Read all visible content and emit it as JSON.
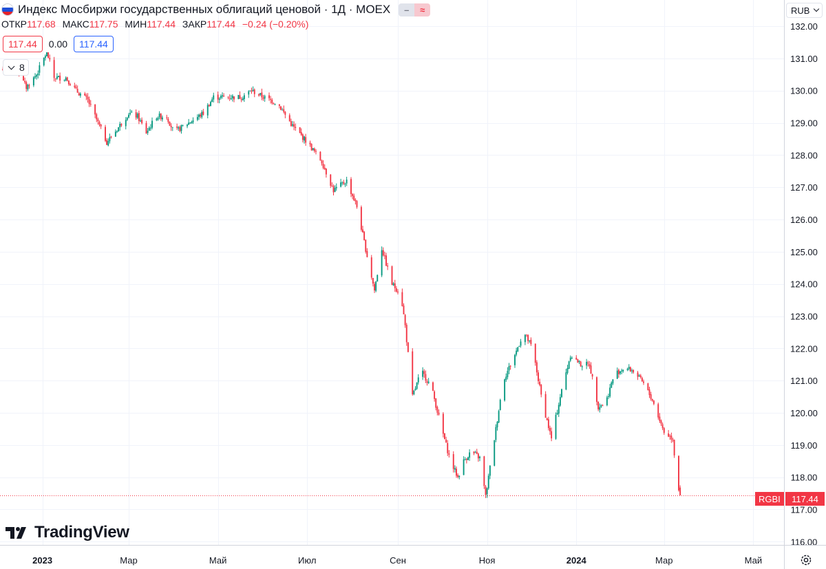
{
  "header": {
    "title": "Индекс Мосбиржи государственных облигаций ценовой · 1Д · MOEX",
    "flag_colors": [
      "#ffffff",
      "#1e4fd8",
      "#e4232b"
    ],
    "toggle_minus": "–",
    "toggle_wave": "≈"
  },
  "ohlc": {
    "open_label": "ОТКР",
    "open": "117.68",
    "high_label": "МАКС",
    "high": "117.75",
    "low_label": "МИН",
    "low": "117.44",
    "close_label": "ЗАКР",
    "close": "117.44",
    "change": "−0.24 (−0.20%)"
  },
  "boxes": {
    "sell": "117.44",
    "spread": "0.00",
    "buy": "117.44"
  },
  "collapse_count": "8",
  "currency": "RUB",
  "ticker_tag": "RGBI",
  "price_tag": "117.44",
  "logo_text": "TradingView",
  "colors": {
    "up": "#089981",
    "down": "#f23645",
    "grid": "#f0f3fa",
    "axis_text": "#131722"
  },
  "chart_data": {
    "type": "candlestick",
    "interval": "1D",
    "last_price": 117.44,
    "ylim": [
      115.9,
      132.15
    ],
    "y_ticks": [
      116,
      117,
      118,
      119,
      120,
      121,
      122,
      123,
      124,
      125,
      126,
      127,
      128,
      129,
      130,
      131,
      132
    ],
    "x_tick_labels": [
      "2023",
      "Мар",
      "Май",
      "Июл",
      "Сен",
      "Ноя",
      "2024",
      "Мар",
      "Май"
    ],
    "x_tick_dates": [
      "2023-01-01",
      "2023-03-01",
      "2023-05-01",
      "2023-07-01",
      "2023-09-01",
      "2023-11-01",
      "2024-01-01",
      "2024-03-01",
      "2024-05-01"
    ],
    "x_range": [
      "2022-12-03",
      "2024-05-22"
    ],
    "close_path": [
      [
        "2022-12-03",
        130.6
      ],
      [
        "2022-12-13",
        130.75
      ],
      [
        "2022-12-21",
        130.1
      ],
      [
        "2022-12-28",
        130.5
      ],
      [
        "2023-01-04",
        131.2
      ],
      [
        "2023-01-09",
        130.4
      ],
      [
        "2023-01-17",
        130.4
      ],
      [
        "2023-01-24",
        130.0
      ],
      [
        "2023-02-01",
        129.7
      ],
      [
        "2023-02-08",
        129.0
      ],
      [
        "2023-02-14",
        128.4
      ],
      [
        "2023-02-21",
        128.8
      ],
      [
        "2023-03-01",
        129.3
      ],
      [
        "2023-03-07",
        129.2
      ],
      [
        "2023-03-13",
        128.7
      ],
      [
        "2023-03-20",
        129.2
      ],
      [
        "2023-03-27",
        129.2
      ],
      [
        "2023-04-01",
        128.7
      ],
      [
        "2023-04-11",
        129.0
      ],
      [
        "2023-04-21",
        129.3
      ],
      [
        "2023-04-28",
        129.8
      ],
      [
        "2023-05-08",
        129.8
      ],
      [
        "2023-05-17",
        129.8
      ],
      [
        "2023-05-24",
        130.0
      ],
      [
        "2023-06-01",
        129.8
      ],
      [
        "2023-06-11",
        129.6
      ],
      [
        "2023-06-21",
        128.9
      ],
      [
        "2023-07-01",
        128.4
      ],
      [
        "2023-07-11",
        127.8
      ],
      [
        "2023-07-19",
        126.9
      ],
      [
        "2023-07-28",
        127.2
      ],
      [
        "2023-08-04",
        126.4
      ],
      [
        "2023-08-09",
        125.3
      ],
      [
        "2023-08-16",
        123.8
      ],
      [
        "2023-08-21",
        125.1
      ],
      [
        "2023-08-28",
        124.0
      ],
      [
        "2023-09-03",
        123.7
      ],
      [
        "2023-09-06",
        122.7
      ],
      [
        "2023-09-11",
        120.5
      ],
      [
        "2023-09-17",
        121.3
      ],
      [
        "2023-09-24",
        120.8
      ],
      [
        "2023-10-01",
        119.5
      ],
      [
        "2023-10-07",
        118.5
      ],
      [
        "2023-10-12",
        118.0
      ],
      [
        "2023-10-16",
        118.5
      ],
      [
        "2023-10-21",
        118.8
      ],
      [
        "2023-10-27",
        118.6
      ],
      [
        "2023-10-31",
        117.4
      ],
      [
        "2023-11-06",
        119.2
      ],
      [
        "2023-11-12",
        121.0
      ],
      [
        "2023-11-20",
        121.8
      ],
      [
        "2023-11-26",
        122.5
      ],
      [
        "2023-12-02",
        122.0
      ],
      [
        "2023-12-09",
        120.3
      ],
      [
        "2023-12-15",
        119.2
      ],
      [
        "2023-12-21",
        120.5
      ],
      [
        "2023-12-28",
        121.8
      ],
      [
        "2024-01-04",
        121.5
      ],
      [
        "2024-01-10",
        121.5
      ],
      [
        "2024-01-16",
        120.2
      ],
      [
        "2024-01-21",
        120.3
      ],
      [
        "2024-01-27",
        121.2
      ],
      [
        "2024-02-03",
        121.4
      ],
      [
        "2024-02-09",
        121.3
      ],
      [
        "2024-02-16",
        120.9
      ],
      [
        "2024-02-22",
        120.4
      ],
      [
        "2024-03-01",
        119.4
      ],
      [
        "2024-03-07",
        119.2
      ],
      [
        "2024-03-10",
        117.8
      ],
      [
        "2024-03-12",
        117.44
      ]
    ]
  }
}
